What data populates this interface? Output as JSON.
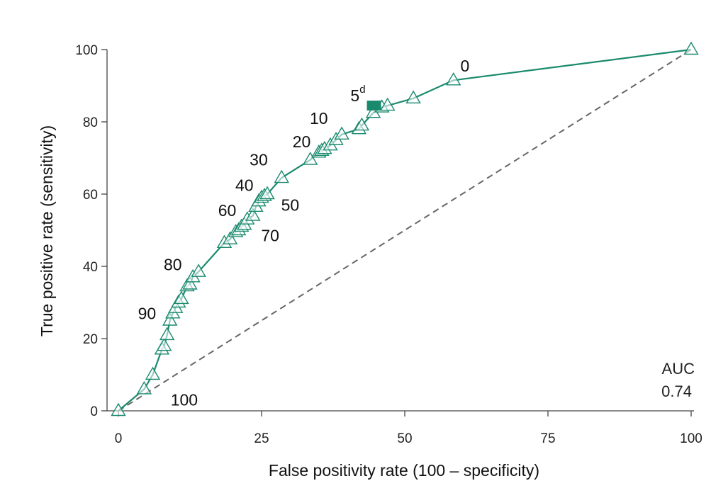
{
  "chart_data": {
    "type": "line",
    "title": "",
    "xlabel": "False positivity rate (100 – specificity)",
    "ylabel": "True positive rate (sensitivity)",
    "xlim": [
      0,
      100
    ],
    "ylim": [
      0,
      100
    ],
    "x_ticks": [
      "0",
      "25",
      "50",
      "75",
      "100"
    ],
    "y_ticks": [
      "0",
      "20",
      "40",
      "60",
      "80",
      "100"
    ],
    "grid": false,
    "colors": {
      "roc": "#1a8a6e",
      "reference": "#666666",
      "text": "#111111"
    },
    "series": [
      {
        "marker": "open-triangle",
        "points": [
          [
            0,
            0
          ],
          [
            4.5,
            6
          ],
          [
            6,
            10
          ],
          [
            7.6,
            17
          ],
          [
            8,
            18
          ],
          [
            8.5,
            21
          ],
          [
            9,
            25
          ],
          [
            9.5,
            27
          ],
          [
            10,
            28.5
          ],
          [
            10.5,
            30
          ],
          [
            11,
            31
          ],
          [
            12,
            34.5
          ],
          [
            12.5,
            35
          ],
          [
            13,
            37
          ],
          [
            14,
            38.5
          ],
          [
            18.5,
            46.5
          ],
          [
            19.5,
            47.5
          ],
          [
            20.5,
            49.5
          ],
          [
            21,
            50
          ],
          [
            21.5,
            51
          ],
          [
            22,
            51.5
          ],
          [
            22.5,
            53
          ],
          [
            23.5,
            54
          ],
          [
            24,
            56.5
          ],
          [
            24.5,
            58
          ],
          [
            25,
            59
          ],
          [
            25.5,
            59.5
          ],
          [
            26,
            60
          ],
          [
            28.5,
            64.5
          ],
          [
            33.5,
            69.5
          ],
          [
            35,
            71.5
          ],
          [
            35.5,
            72
          ],
          [
            36,
            72.5
          ],
          [
            37,
            73.5
          ],
          [
            38,
            75
          ],
          [
            39,
            76.5
          ],
          [
            42,
            78
          ],
          [
            42.5,
            79
          ],
          [
            44.5,
            82.5
          ],
          [
            46,
            84
          ],
          [
            47,
            84.5
          ],
          [
            51.5,
            86.5
          ],
          [
            58.5,
            91.5
          ],
          [
            100,
            100
          ]
        ]
      },
      {
        "name": "reference",
        "style": "dashed",
        "points": [
          [
            0,
            0
          ],
          [
            100,
            100
          ]
        ]
      }
    ],
    "highlight_point": {
      "label": "5",
      "superscript": "d",
      "x": 44.5,
      "y": 84.5,
      "marker": "filled-square"
    },
    "threshold_labels": [
      {
        "text": "0",
        "x": 60.5,
        "y": 95.5
      },
      {
        "text": "10",
        "x": 35,
        "y": 81
      },
      {
        "text": "20",
        "x": 32,
        "y": 74.5
      },
      {
        "text": "30",
        "x": 24.5,
        "y": 69.5
      },
      {
        "text": "40",
        "x": 22,
        "y": 62.5
      },
      {
        "text": "50",
        "x": 30,
        "y": 57
      },
      {
        "text": "60",
        "x": 19,
        "y": 55.5
      },
      {
        "text": "70",
        "x": 26.5,
        "y": 48.5
      },
      {
        "text": "80",
        "x": 9.5,
        "y": 40.5
      },
      {
        "text": "90",
        "x": 5,
        "y": 27
      },
      {
        "text": "100",
        "x": 11.5,
        "y": 3
      }
    ],
    "auc": {
      "label": "AUC",
      "value": "0.74"
    }
  }
}
